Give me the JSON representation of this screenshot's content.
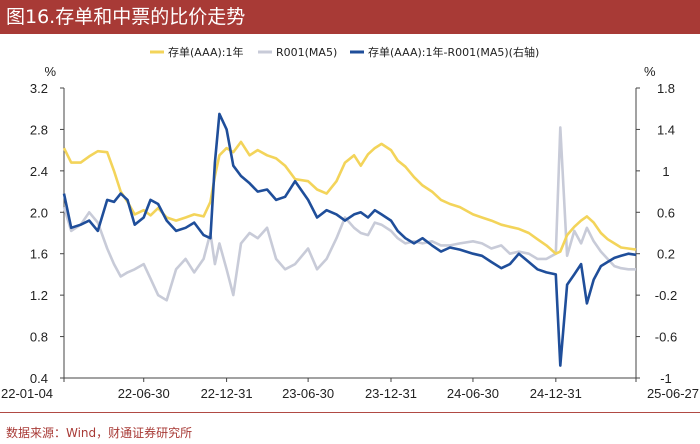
{
  "header": {
    "title": "图16.存单和中票的比价走势"
  },
  "footer": {
    "source": "数据来源：Wind，财通证券研究所"
  },
  "chart_data": {
    "type": "line",
    "title": "图16.存单和中票的比价走势",
    "left_axis": {
      "unit": "%",
      "ylim": [
        0.4,
        3.2
      ],
      "ticks": [
        "3.2",
        "2.8",
        "2.4",
        "2.0",
        "1.6",
        "1.2",
        "0.8",
        "0.4"
      ]
    },
    "right_axis": {
      "unit": "%",
      "ylim": [
        -1.0,
        1.8
      ],
      "ticks": [
        "1.8",
        "1.4",
        "1",
        "0.6",
        "0.2",
        "-0.2",
        "-0.6",
        "-1"
      ]
    },
    "x_ticks": [
      "22-01-04",
      "22-06-30",
      "22-12-31",
      "23-06-30",
      "23-12-31",
      "24-06-30",
      "24-12-31",
      "25-06-27"
    ],
    "grid": false,
    "legend_position": "top",
    "colors": {
      "cd": "#f3d45a",
      "r001": "#c8cbd8",
      "spread": "#1f4e9a"
    },
    "series": [
      {
        "name": "存单(AAA):1年",
        "axis": "left",
        "points": [
          [
            "22-01-04",
            2.62
          ],
          [
            "22-01-20",
            2.48
          ],
          [
            "22-02-10",
            2.48
          ],
          [
            "22-03-01",
            2.54
          ],
          [
            "22-03-20",
            2.59
          ],
          [
            "22-04-10",
            2.58
          ],
          [
            "22-04-25",
            2.4
          ],
          [
            "22-05-10",
            2.2
          ],
          [
            "22-05-25",
            2.1
          ],
          [
            "22-06-10",
            1.98
          ],
          [
            "22-06-30",
            2.02
          ],
          [
            "22-07-15",
            1.97
          ],
          [
            "22-08-01",
            2.04
          ],
          [
            "22-08-20",
            1.95
          ],
          [
            "22-09-10",
            1.92
          ],
          [
            "22-10-01",
            1.95
          ],
          [
            "22-10-20",
            1.98
          ],
          [
            "22-11-10",
            1.96
          ],
          [
            "22-11-25",
            2.1
          ],
          [
            "22-12-05",
            2.35
          ],
          [
            "22-12-15",
            2.55
          ],
          [
            "22-12-31",
            2.62
          ],
          [
            "23-01-15",
            2.58
          ],
          [
            "23-02-01",
            2.68
          ],
          [
            "23-02-20",
            2.55
          ],
          [
            "23-03-10",
            2.6
          ],
          [
            "23-03-31",
            2.55
          ],
          [
            "23-04-20",
            2.52
          ],
          [
            "23-05-10",
            2.45
          ],
          [
            "23-06-01",
            2.32
          ],
          [
            "23-06-30",
            2.3
          ],
          [
            "23-07-20",
            2.22
          ],
          [
            "23-08-10",
            2.18
          ],
          [
            "23-09-01",
            2.3
          ],
          [
            "23-09-20",
            2.48
          ],
          [
            "23-10-10",
            2.55
          ],
          [
            "23-10-25",
            2.45
          ],
          [
            "23-11-10",
            2.56
          ],
          [
            "23-11-25",
            2.62
          ],
          [
            "23-12-10",
            2.66
          ],
          [
            "23-12-31",
            2.6
          ],
          [
            "24-01-15",
            2.5
          ],
          [
            "24-02-01",
            2.44
          ],
          [
            "24-02-20",
            2.34
          ],
          [
            "24-03-10",
            2.26
          ],
          [
            "24-03-31",
            2.2
          ],
          [
            "24-04-20",
            2.12
          ],
          [
            "24-05-10",
            2.08
          ],
          [
            "24-06-01",
            2.05
          ],
          [
            "24-06-30",
            1.98
          ],
          [
            "24-07-20",
            1.95
          ],
          [
            "24-08-10",
            1.92
          ],
          [
            "24-09-01",
            1.88
          ],
          [
            "24-09-20",
            1.86
          ],
          [
            "24-10-10",
            1.84
          ],
          [
            "24-11-01",
            1.8
          ],
          [
            "24-11-20",
            1.74
          ],
          [
            "24-12-10",
            1.68
          ],
          [
            "24-12-31",
            1.6
          ],
          [
            "25-01-10",
            1.62
          ],
          [
            "25-01-25",
            1.78
          ],
          [
            "25-02-10",
            1.86
          ],
          [
            "25-02-25",
            1.92
          ],
          [
            "25-03-10",
            1.96
          ],
          [
            "25-03-25",
            1.9
          ],
          [
            "25-04-10",
            1.8
          ],
          [
            "25-04-25",
            1.74
          ],
          [
            "25-05-10",
            1.7
          ],
          [
            "25-05-25",
            1.66
          ],
          [
            "25-06-10",
            1.65
          ],
          [
            "25-06-27",
            1.64
          ]
        ]
      },
      {
        "name": "R001(MA5)",
        "axis": "left",
        "points": [
          [
            "22-01-04",
            2.05
          ],
          [
            "22-01-20",
            1.82
          ],
          [
            "22-02-10",
            1.88
          ],
          [
            "22-03-01",
            2.0
          ],
          [
            "22-03-20",
            1.9
          ],
          [
            "22-04-10",
            1.65
          ],
          [
            "22-04-25",
            1.5
          ],
          [
            "22-05-10",
            1.38
          ],
          [
            "22-05-25",
            1.42
          ],
          [
            "22-06-10",
            1.45
          ],
          [
            "22-06-30",
            1.5
          ],
          [
            "22-07-15",
            1.36
          ],
          [
            "22-08-01",
            1.2
          ],
          [
            "22-08-20",
            1.15
          ],
          [
            "22-09-10",
            1.45
          ],
          [
            "22-10-01",
            1.55
          ],
          [
            "22-10-20",
            1.42
          ],
          [
            "22-11-10",
            1.55
          ],
          [
            "22-11-25",
            1.8
          ],
          [
            "22-12-05",
            1.5
          ],
          [
            "22-12-15",
            1.7
          ],
          [
            "22-12-31",
            1.45
          ],
          [
            "23-01-15",
            1.2
          ],
          [
            "23-02-01",
            1.7
          ],
          [
            "23-02-20",
            1.8
          ],
          [
            "23-03-10",
            1.75
          ],
          [
            "23-03-31",
            1.85
          ],
          [
            "23-04-20",
            1.55
          ],
          [
            "23-05-10",
            1.45
          ],
          [
            "23-06-01",
            1.5
          ],
          [
            "23-06-30",
            1.65
          ],
          [
            "23-07-20",
            1.45
          ],
          [
            "23-08-10",
            1.55
          ],
          [
            "23-09-01",
            1.75
          ],
          [
            "23-09-20",
            1.95
          ],
          [
            "23-10-10",
            1.85
          ],
          [
            "23-10-25",
            1.8
          ],
          [
            "23-11-10",
            1.78
          ],
          [
            "23-11-25",
            1.9
          ],
          [
            "23-12-10",
            1.88
          ],
          [
            "23-12-31",
            1.82
          ],
          [
            "24-01-15",
            1.75
          ],
          [
            "24-02-01",
            1.7
          ],
          [
            "24-02-20",
            1.72
          ],
          [
            "24-03-10",
            1.7
          ],
          [
            "24-03-31",
            1.72
          ],
          [
            "24-04-20",
            1.68
          ],
          [
            "24-05-10",
            1.68
          ],
          [
            "24-06-01",
            1.7
          ],
          [
            "24-06-30",
            1.72
          ],
          [
            "24-07-20",
            1.7
          ],
          [
            "24-08-10",
            1.65
          ],
          [
            "24-09-01",
            1.68
          ],
          [
            "24-09-20",
            1.6
          ],
          [
            "24-10-10",
            1.62
          ],
          [
            "24-11-01",
            1.6
          ],
          [
            "24-11-20",
            1.55
          ],
          [
            "24-12-10",
            1.55
          ],
          [
            "24-12-31",
            1.6
          ],
          [
            "25-01-10",
            2.82
          ],
          [
            "25-01-25",
            1.58
          ],
          [
            "25-02-10",
            1.82
          ],
          [
            "25-02-25",
            1.7
          ],
          [
            "25-03-10",
            1.85
          ],
          [
            "25-03-25",
            1.72
          ],
          [
            "25-04-10",
            1.62
          ],
          [
            "25-04-25",
            1.55
          ],
          [
            "25-05-10",
            1.48
          ],
          [
            "25-05-25",
            1.46
          ],
          [
            "25-06-10",
            1.45
          ],
          [
            "25-06-27",
            1.45
          ]
        ]
      },
      {
        "name": "存单(AAA):1年-R001(MA5)(右轴)",
        "axis": "right",
        "points": [
          [
            "22-01-04",
            0.78
          ],
          [
            "22-01-20",
            0.45
          ],
          [
            "22-02-10",
            0.48
          ],
          [
            "22-03-01",
            0.52
          ],
          [
            "22-03-20",
            0.42
          ],
          [
            "22-04-10",
            0.72
          ],
          [
            "22-04-25",
            0.7
          ],
          [
            "22-05-10",
            0.78
          ],
          [
            "22-05-25",
            0.72
          ],
          [
            "22-06-10",
            0.48
          ],
          [
            "22-06-30",
            0.55
          ],
          [
            "22-07-15",
            0.72
          ],
          [
            "22-08-01",
            0.68
          ],
          [
            "22-08-20",
            0.52
          ],
          [
            "22-09-10",
            0.42
          ],
          [
            "22-10-01",
            0.45
          ],
          [
            "22-10-20",
            0.5
          ],
          [
            "22-11-10",
            0.38
          ],
          [
            "22-11-25",
            0.35
          ],
          [
            "22-12-05",
            1.08
          ],
          [
            "22-12-15",
            1.55
          ],
          [
            "22-12-31",
            1.4
          ],
          [
            "23-01-15",
            1.05
          ],
          [
            "23-02-01",
            0.95
          ],
          [
            "23-02-20",
            0.88
          ],
          [
            "23-03-10",
            0.8
          ],
          [
            "23-03-31",
            0.82
          ],
          [
            "23-04-20",
            0.72
          ],
          [
            "23-05-10",
            0.75
          ],
          [
            "23-06-01",
            0.9
          ],
          [
            "23-06-30",
            0.72
          ],
          [
            "23-07-20",
            0.55
          ],
          [
            "23-08-10",
            0.62
          ],
          [
            "23-09-01",
            0.58
          ],
          [
            "23-09-20",
            0.52
          ],
          [
            "23-10-10",
            0.58
          ],
          [
            "23-10-25",
            0.6
          ],
          [
            "23-11-10",
            0.55
          ],
          [
            "23-11-25",
            0.62
          ],
          [
            "23-12-10",
            0.58
          ],
          [
            "23-12-31",
            0.52
          ],
          [
            "24-01-15",
            0.42
          ],
          [
            "24-02-01",
            0.35
          ],
          [
            "24-02-20",
            0.3
          ],
          [
            "24-03-10",
            0.35
          ],
          [
            "24-03-31",
            0.28
          ],
          [
            "24-04-20",
            0.22
          ],
          [
            "24-05-10",
            0.26
          ],
          [
            "24-06-01",
            0.24
          ],
          [
            "24-06-30",
            0.2
          ],
          [
            "24-07-20",
            0.18
          ],
          [
            "24-08-10",
            0.12
          ],
          [
            "24-09-01",
            0.06
          ],
          [
            "24-09-20",
            0.1
          ],
          [
            "24-10-10",
            0.2
          ],
          [
            "24-11-01",
            0.12
          ],
          [
            "24-11-20",
            0.05
          ],
          [
            "24-12-10",
            0.02
          ],
          [
            "24-12-31",
            0.0
          ],
          [
            "25-01-10",
            -0.88
          ],
          [
            "25-01-25",
            -0.1
          ],
          [
            "25-02-10",
            0.0
          ],
          [
            "25-02-25",
            0.1
          ],
          [
            "25-03-10",
            -0.28
          ],
          [
            "25-03-25",
            -0.05
          ],
          [
            "25-04-10",
            0.08
          ],
          [
            "25-04-25",
            0.12
          ],
          [
            "25-05-10",
            0.16
          ],
          [
            "25-05-25",
            0.18
          ],
          [
            "25-06-10",
            0.2
          ],
          [
            "25-06-27",
            0.19
          ]
        ]
      }
    ]
  }
}
